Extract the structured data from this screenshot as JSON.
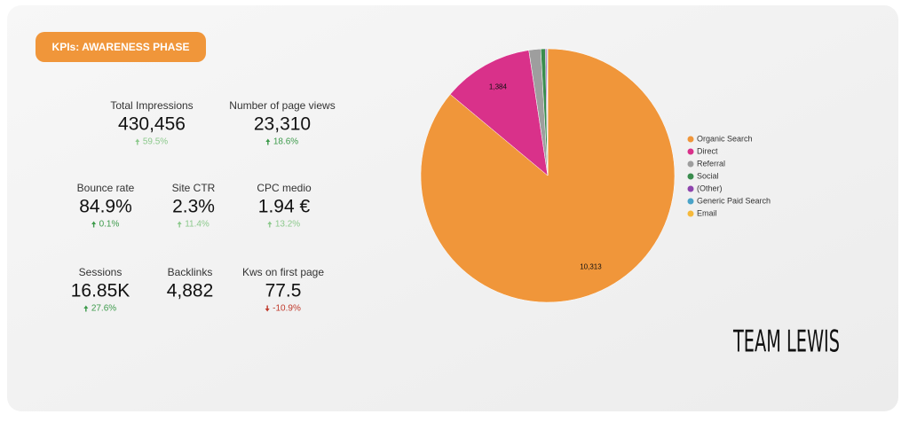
{
  "header": {
    "title": "KPIs: AWARENESS PHASE"
  },
  "kpis": [
    {
      "label": "Total Impressions",
      "value": "430,456",
      "change": "59.5%",
      "change_color": "#8cc98c"
    },
    {
      "label": "Number of page views",
      "value": "23,310",
      "change": "18.6%",
      "change_color": "#3c9a4a"
    },
    {
      "label": "Bounce rate",
      "value": "84.9%",
      "change": "0.1%",
      "change_color": "#3c9a4a"
    },
    {
      "label": "Site CTR",
      "value": "2.3%",
      "change": "11.4%",
      "change_color": "#8cc98c"
    },
    {
      "label": "CPC medio",
      "value": "1.94 €",
      "change": "13.2%",
      "change_color": "#8cc98c"
    },
    {
      "label": "Sessions",
      "value": "16.85K",
      "change": "27.6%",
      "change_color": "#3c9a4a"
    },
    {
      "label": "Backlinks",
      "value": "4,882"
    },
    {
      "label": "Kws on first page",
      "value": "77.5",
      "change": "-10.9%",
      "change_color": "#c0392b"
    }
  ],
  "chart_data": {
    "type": "pie",
    "categories": [
      "Organic Search",
      "Direct",
      "Referral",
      "Social",
      "(Other)",
      "Generic Paid Search",
      "Email"
    ],
    "values": [
      10313,
      1384,
      180,
      70,
      20,
      10,
      5
    ],
    "value_labels": [
      "10,313",
      "1,384",
      null,
      null,
      null,
      null,
      null
    ],
    "colors": [
      "#f0963a",
      "#d9318a",
      "#9e9e9e",
      "#3a8c4e",
      "#8e44ad",
      "#4aa3c8",
      "#f6b93b"
    ],
    "legend": "right"
  },
  "logo": "TEAM LEWIS"
}
